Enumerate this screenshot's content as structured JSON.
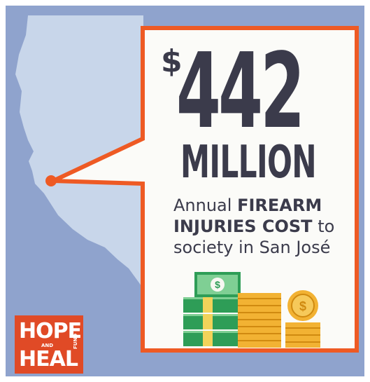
{
  "headline": {
    "currency_symbol": "$",
    "amount": "442",
    "unit": "MILLION"
  },
  "caption": {
    "line1_plain": "Annual ",
    "line1_bold": "FIREARM",
    "line2_bold": "INJURIES COST",
    "line2_plain": " to",
    "line3": "society in San José"
  },
  "logo": {
    "word1": "HOPE",
    "connector": "AND",
    "word2": "HEAL",
    "suffix": "FUND"
  },
  "colors": {
    "background": "#8fa3cd",
    "map_fill": "#c8d6ea",
    "accent": "#ee5a24",
    "card_fill": "#fbfbf8",
    "text": "#3b3b4b",
    "bills": "#2e9d57",
    "coins": "#f2b233"
  },
  "icons": [
    "dollar-bill-icon",
    "coin-icon",
    "location-marker-icon"
  ]
}
